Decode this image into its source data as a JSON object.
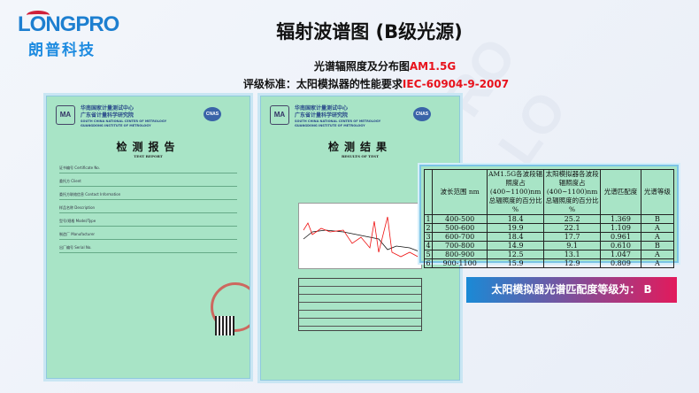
{
  "logo": {
    "en": "LONGPRO",
    "cn": "朗普科技"
  },
  "title": "辐射波谱图 (B级光源)",
  "subtitle1": {
    "text": "光谱辐照度及分布图",
    "highlight": "AM1.5G"
  },
  "subtitle2": {
    "text": "评级标准：太阳模拟器的性能要求",
    "highlight": "IEC-60904-9-2007"
  },
  "colors": {
    "highlight": "#e8121c",
    "banner_start": "#1a8ad6",
    "banner_end": "#e21a5c",
    "doc_bg": "#a8e4c6"
  },
  "doc_header": {
    "cn1": "华南国家计量测试中心",
    "cn2": "广东省计量科学研究院",
    "en1": "SOUTH CHINA NATIONAL CENTER OF METROLOGY",
    "en2": "GUANGDONG INSTITUTE OF METROLOGY",
    "cma": "MA",
    "cnas": "CNAS"
  },
  "doc1": {
    "title": "检测报告",
    "subtitle": "TEST REPORT",
    "fields": [
      "证书编号 Certificate No.",
      "委托方 Client",
      "委托方联络信息 Contact Information",
      "样品名称 Description",
      "型号/规格 Model/Type",
      "制造厂 Manufacturer",
      "出厂编号 Serial No."
    ]
  },
  "doc2": {
    "title": "检测结果",
    "subtitle": "RESULTS OF TEST"
  },
  "table": {
    "headers": [
      "",
      "波长范围 nm",
      "AM1.5G各波段辐照度占(400~1100)nm总辐照度的百分比 %",
      "太阳模拟器各波段辐照度占(400~1100)nm总辐照度的百分比 %",
      "光谱匹配度",
      "光谱等级"
    ],
    "rows": [
      [
        "1",
        "400-500",
        "18.4",
        "25.2",
        "1.369",
        "B"
      ],
      [
        "2",
        "500-600",
        "19.9",
        "22.1",
        "1.109",
        "A"
      ],
      [
        "3",
        "600-700",
        "18.4",
        "17.7",
        "0.961",
        "A"
      ],
      [
        "4",
        "700-800",
        "14.9",
        "9.1",
        "0.610",
        "B"
      ],
      [
        "5",
        "800-900",
        "12.5",
        "13.1",
        "1.047",
        "A"
      ],
      [
        "6",
        "900-1100",
        "15.9",
        "12.9",
        "0.809",
        "A"
      ]
    ]
  },
  "banner": "太阳模拟器光谱匹配度等级为： B"
}
